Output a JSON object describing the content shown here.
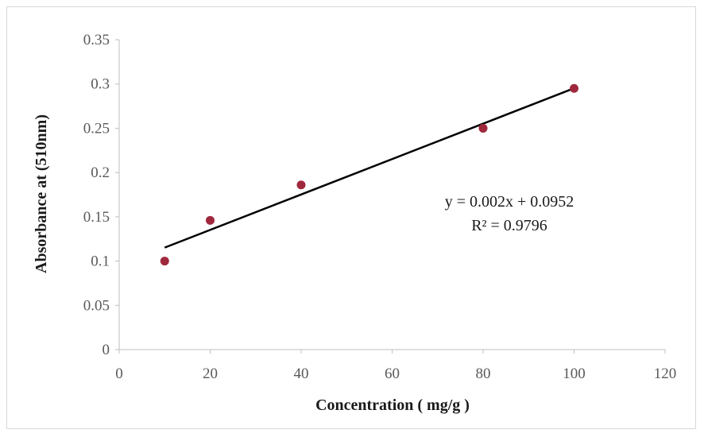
{
  "chart_data": {
    "type": "scatter",
    "title": "",
    "xlabel": "Concentration ( mg/g )",
    "ylabel": "Absorbance at (510nm)",
    "xlim": [
      0,
      120
    ],
    "ylim": [
      0,
      0.35
    ],
    "x_ticks": [
      "0",
      "20",
      "40",
      "60",
      "80",
      "100",
      "120"
    ],
    "y_ticks": [
      "0",
      "0.05",
      "0.1",
      "0.15",
      "0.2",
      "0.25",
      "0.3",
      "0.35"
    ],
    "grid": false,
    "series": [
      {
        "name": "Absorbance",
        "x": [
          10,
          20,
          40,
          80,
          100
        ],
        "y": [
          0.1,
          0.146,
          0.186,
          0.25,
          0.295
        ],
        "color": "#a0283c"
      }
    ],
    "trendline": {
      "type": "linear",
      "slope": 0.002,
      "intercept": 0.0952,
      "x_range": [
        10,
        100
      ],
      "color": "#000000"
    },
    "annotations": {
      "equation": "y = 0.002x + 0.0952",
      "r_squared": "R² = 0.9796"
    }
  }
}
